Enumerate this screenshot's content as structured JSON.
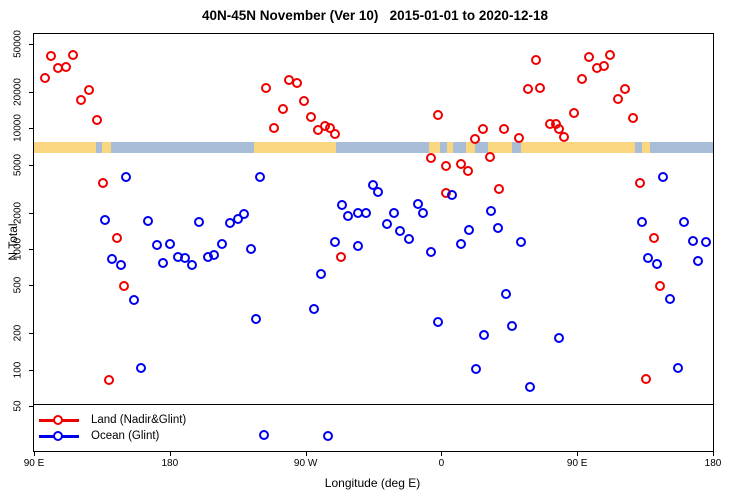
{
  "title": "40N-45N November (Ver 10)   2015-01-01 to 2020-12-18",
  "chart_data": {
    "type": "scatter",
    "title": "40N-45N November (Ver 10)   2015-01-01 to 2020-12-18",
    "x_axis": {
      "label": "Longitude (deg E)",
      "range_axis_deg": [
        90,
        540
      ],
      "ticks": [
        {
          "deg": 90,
          "label": "90 E"
        },
        {
          "deg": 180,
          "label": "180"
        },
        {
          "deg": 270,
          "label": "90 W"
        },
        {
          "deg": 360,
          "label": "0"
        },
        {
          "deg": 450,
          "label": "90 E"
        },
        {
          "deg": 540,
          "label": "180"
        }
      ]
    },
    "y_axis": {
      "label": "N Total",
      "scale": "log",
      "ticks": [
        50000,
        20000,
        10000,
        5000,
        2000,
        1000,
        500,
        200,
        100,
        50
      ],
      "range": [
        21,
        60000
      ]
    },
    "ref_line_n": 52,
    "map_band": {
      "n_range": [
        6240,
        7690
      ],
      "land_color": "#f9d67f",
      "ocean_color": "#a8bed8",
      "segments": [
        {
          "from": 90,
          "to": 131,
          "type": "land"
        },
        {
          "from": 131,
          "to": 135,
          "type": "ocean"
        },
        {
          "from": 135,
          "to": 141,
          "type": "land"
        },
        {
          "from": 141,
          "to": 236,
          "type": "ocean"
        },
        {
          "from": 236,
          "to": 290,
          "type": "land"
        },
        {
          "from": 290,
          "to": 352,
          "type": "ocean"
        },
        {
          "from": 352,
          "to": 359,
          "type": "land"
        },
        {
          "from": 359,
          "to": 364,
          "type": "ocean"
        },
        {
          "from": 364,
          "to": 368,
          "type": "land"
        },
        {
          "from": 368,
          "to": 376,
          "type": "ocean"
        },
        {
          "from": 376,
          "to": 382,
          "type": "land"
        },
        {
          "from": 382,
          "to": 391,
          "type": "ocean"
        },
        {
          "from": 391,
          "to": 407,
          "type": "land"
        },
        {
          "from": 407,
          "to": 413,
          "type": "ocean"
        },
        {
          "from": 413,
          "to": 488,
          "type": "land"
        },
        {
          "from": 488,
          "to": 493,
          "type": "ocean"
        },
        {
          "from": 493,
          "to": 498,
          "type": "land"
        },
        {
          "from": 498,
          "to": 540,
          "type": "ocean"
        }
      ]
    },
    "legend": {
      "position": "bottom-left"
    },
    "series": [
      {
        "name": "Land (Nadir&Glint)",
        "color": "#ee0000",
        "points": [
          [
            101.3,
            39700
          ],
          [
            115.8,
            40400
          ],
          [
            105.9,
            31500
          ],
          [
            111.2,
            32100
          ],
          [
            97.3,
            26000
          ],
          [
            126.5,
            20800
          ],
          [
            121.1,
            17100
          ],
          [
            131.8,
            11700
          ],
          [
            243.8,
            21600
          ],
          [
            135.7,
            3520
          ],
          [
            145.0,
            1230
          ],
          [
            259.0,
            25100
          ],
          [
            264.3,
            23700
          ],
          [
            268.9,
            16800
          ],
          [
            255.0,
            14400
          ],
          [
            273.6,
            12400
          ],
          [
            249.1,
            10000
          ],
          [
            278.2,
            9700
          ],
          [
            282.9,
            10400
          ],
          [
            286.2,
            10000
          ],
          [
            289.5,
            8960
          ],
          [
            357.7,
            12900
          ],
          [
            387.5,
            9860
          ],
          [
            382.2,
            8150
          ],
          [
            401.5,
            9860
          ],
          [
            411.4,
            8300
          ],
          [
            353.1,
            5670
          ],
          [
            363.0,
            4870
          ],
          [
            373.0,
            5060
          ],
          [
            377.6,
            4430
          ],
          [
            363.0,
            2910
          ],
          [
            398.2,
            3140
          ],
          [
            392.2,
            5780
          ],
          [
            422.7,
            36800
          ],
          [
            417.4,
            21200
          ],
          [
            425.3,
            21400
          ],
          [
            447.9,
            13400
          ],
          [
            453.2,
            25600
          ],
          [
            457.8,
            38900
          ],
          [
            463.1,
            31500
          ],
          [
            467.7,
            32800
          ],
          [
            471.7,
            40400
          ],
          [
            477.0,
            17500
          ],
          [
            481.6,
            21200
          ],
          [
            486.9,
            12200
          ],
          [
            432.0,
            10850
          ],
          [
            436.0,
            10900
          ],
          [
            438.0,
            9860
          ],
          [
            441.3,
            8470
          ],
          [
            491.6,
            3520
          ],
          [
            500.9,
            1230
          ],
          [
            504.9,
            493
          ],
          [
            495.6,
            84
          ],
          [
            149.6,
            493
          ],
          [
            139.7,
            82
          ],
          [
            293.5,
            858
          ]
        ]
      },
      {
        "name": "Ocean (Glint)",
        "color": "#0000ee",
        "points": [
          [
            151.0,
            3950
          ],
          [
            239.8,
            3980
          ],
          [
            137.1,
            1740
          ],
          [
            165.5,
            1710
          ],
          [
            199.4,
            1680
          ],
          [
            219.9,
            1650
          ],
          [
            225.2,
            1770
          ],
          [
            229.2,
            1950
          ],
          [
            289.5,
            1140
          ],
          [
            304.7,
            1060
          ],
          [
            314.7,
            3390
          ],
          [
            318.0,
            2960
          ],
          [
            294.1,
            2310
          ],
          [
            298.1,
            1870
          ],
          [
            304.7,
            1980
          ],
          [
            310.0,
            1970
          ],
          [
            328.6,
            1970
          ],
          [
            324.0,
            1620
          ],
          [
            332.5,
            1400
          ],
          [
            344.5,
            2360
          ],
          [
            347.8,
            1980
          ],
          [
            367.0,
            2800
          ],
          [
            392.9,
            2070
          ],
          [
            378.3,
            1430
          ],
          [
            397.5,
            1490
          ],
          [
            338.5,
            1210
          ],
          [
            280.2,
            620
          ],
          [
            275.5,
            318
          ],
          [
            353.1,
            945
          ],
          [
            373.0,
            1100
          ],
          [
            357.7,
            248
          ],
          [
            388.2,
            194
          ],
          [
            402.8,
            422
          ],
          [
            406.8,
            229
          ],
          [
            382.9,
            101
          ],
          [
            284.8,
            28
          ],
          [
            171.5,
            1080
          ],
          [
            180.1,
            1100
          ],
          [
            141.7,
            825
          ],
          [
            147.7,
            730
          ],
          [
            175.5,
            770
          ],
          [
            185.4,
            858
          ],
          [
            190.1,
            845
          ],
          [
            194.7,
            740
          ],
          [
            205.3,
            858
          ],
          [
            209.3,
            890
          ],
          [
            214.6,
            1100
          ],
          [
            233.8,
            1000
          ],
          [
            156.3,
            377
          ],
          [
            237.1,
            262
          ],
          [
            160.9,
            104
          ],
          [
            242.4,
            29
          ],
          [
            412.8,
            1140
          ],
          [
            496.9,
            840
          ],
          [
            502.9,
            750
          ],
          [
            530.1,
            790
          ],
          [
            511.5,
            382
          ],
          [
            438.0,
            183
          ],
          [
            516.8,
            104
          ],
          [
            418.7,
            72
          ],
          [
            492.9,
            1670
          ],
          [
            520.8,
            1680
          ],
          [
            506.9,
            3950
          ],
          [
            526.8,
            1160
          ],
          [
            535.4,
            1150
          ]
        ]
      }
    ]
  }
}
